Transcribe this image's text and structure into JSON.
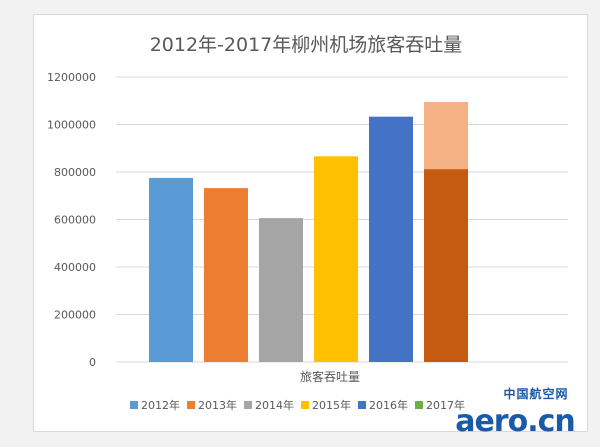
{
  "chart_data": {
    "type": "bar",
    "title": "2012年-2017年柳州机场旅客吞吐量",
    "xlabel": "旅客吞吐量",
    "ylabel": "",
    "ylim": [
      0,
      1200000
    ],
    "yticks": [
      0,
      200000,
      400000,
      600000,
      800000,
      1000000,
      1200000
    ],
    "ytick_labels": [
      "0",
      "200000",
      "400000",
      "600000",
      "800000",
      "1000000",
      "1200000"
    ],
    "categories": [
      "旅客吞吐量"
    ],
    "grid": true,
    "legend_position": "bottom",
    "series": [
      {
        "name": "2012年",
        "values": [
          775000
        ],
        "color": "#5b9bd5"
      },
      {
        "name": "2013年",
        "values": [
          732000
        ],
        "color": "#ed7d31"
      },
      {
        "name": "2014年",
        "values": [
          606000
        ],
        "color": "#a5a5a5"
      },
      {
        "name": "2015年",
        "values": [
          866000
        ],
        "color": "#ffc000"
      },
      {
        "name": "2016年",
        "values": [
          1033000
        ],
        "color": "#4472c4"
      },
      {
        "name": "2017年",
        "values": [
          1095000
        ],
        "color": "#70ad47",
        "overlay": {
          "lower_value": 812000,
          "lower_color": "#c55a11",
          "upper_color": "#f4b183"
        }
      }
    ]
  },
  "watermark": {
    "cn_text": "中国航空网",
    "en_text": "aero.cn",
    "color": "#1a5aa8"
  }
}
